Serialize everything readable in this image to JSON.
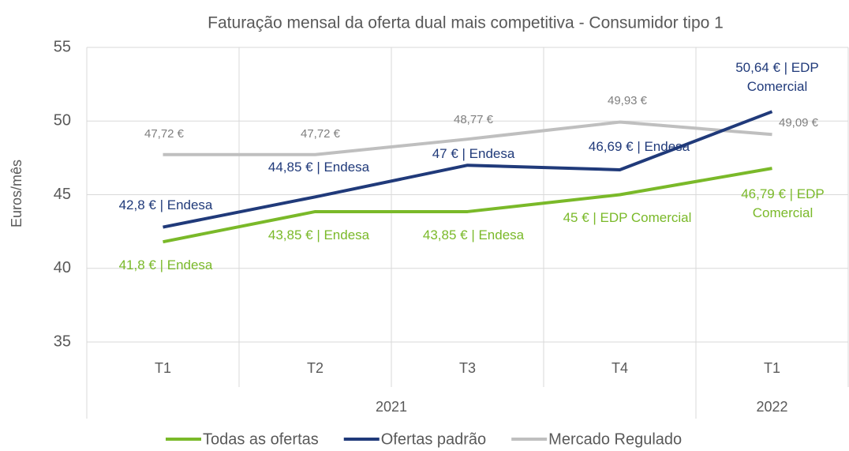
{
  "chart_data": {
    "type": "line",
    "title": "Faturação mensal da oferta dual mais competitiva - Consumidor tipo 1",
    "y_label": "Euros/mês",
    "categories": [
      "T1",
      "T2",
      "T3",
      "T4",
      "T1"
    ],
    "groups": [
      {
        "label": "2021",
        "span": 4
      },
      {
        "label": "2022",
        "span": 1
      }
    ],
    "ylim": [
      35,
      55
    ],
    "yticks": [
      35,
      40,
      45,
      50,
      55
    ],
    "grid": true,
    "legend": "bottom",
    "series": [
      {
        "name": "Todas as ofertas",
        "color": "#7ab929",
        "values": [
          41.8,
          43.85,
          43.85,
          45,
          46.79
        ],
        "value_labels": [
          "41,8 € | Endesa",
          "43,85 € | Endesa",
          "43,85 € | Endesa",
          "45 € | EDP Comercial",
          "46,79 € | EDP Comercial"
        ]
      },
      {
        "name": "Ofertas padrão",
        "color": "#203a7a",
        "values": [
          42.8,
          44.85,
          47,
          46.69,
          50.64
        ],
        "value_labels": [
          "42,8 € | Endesa",
          "44,85 € | Endesa",
          "47 € | Endesa",
          "46,69 € | Endesa",
          "50,64 € | EDP Comercial"
        ]
      },
      {
        "name": "Mercado Regulado",
        "color": "#bfbfbf",
        "values": [
          47.72,
          47.72,
          48.77,
          49.93,
          49.09
        ],
        "value_labels": [
          "47,72 €",
          "47,72 €",
          "48,77 €",
          "49,93 €",
          "49,09 €"
        ]
      }
    ]
  }
}
